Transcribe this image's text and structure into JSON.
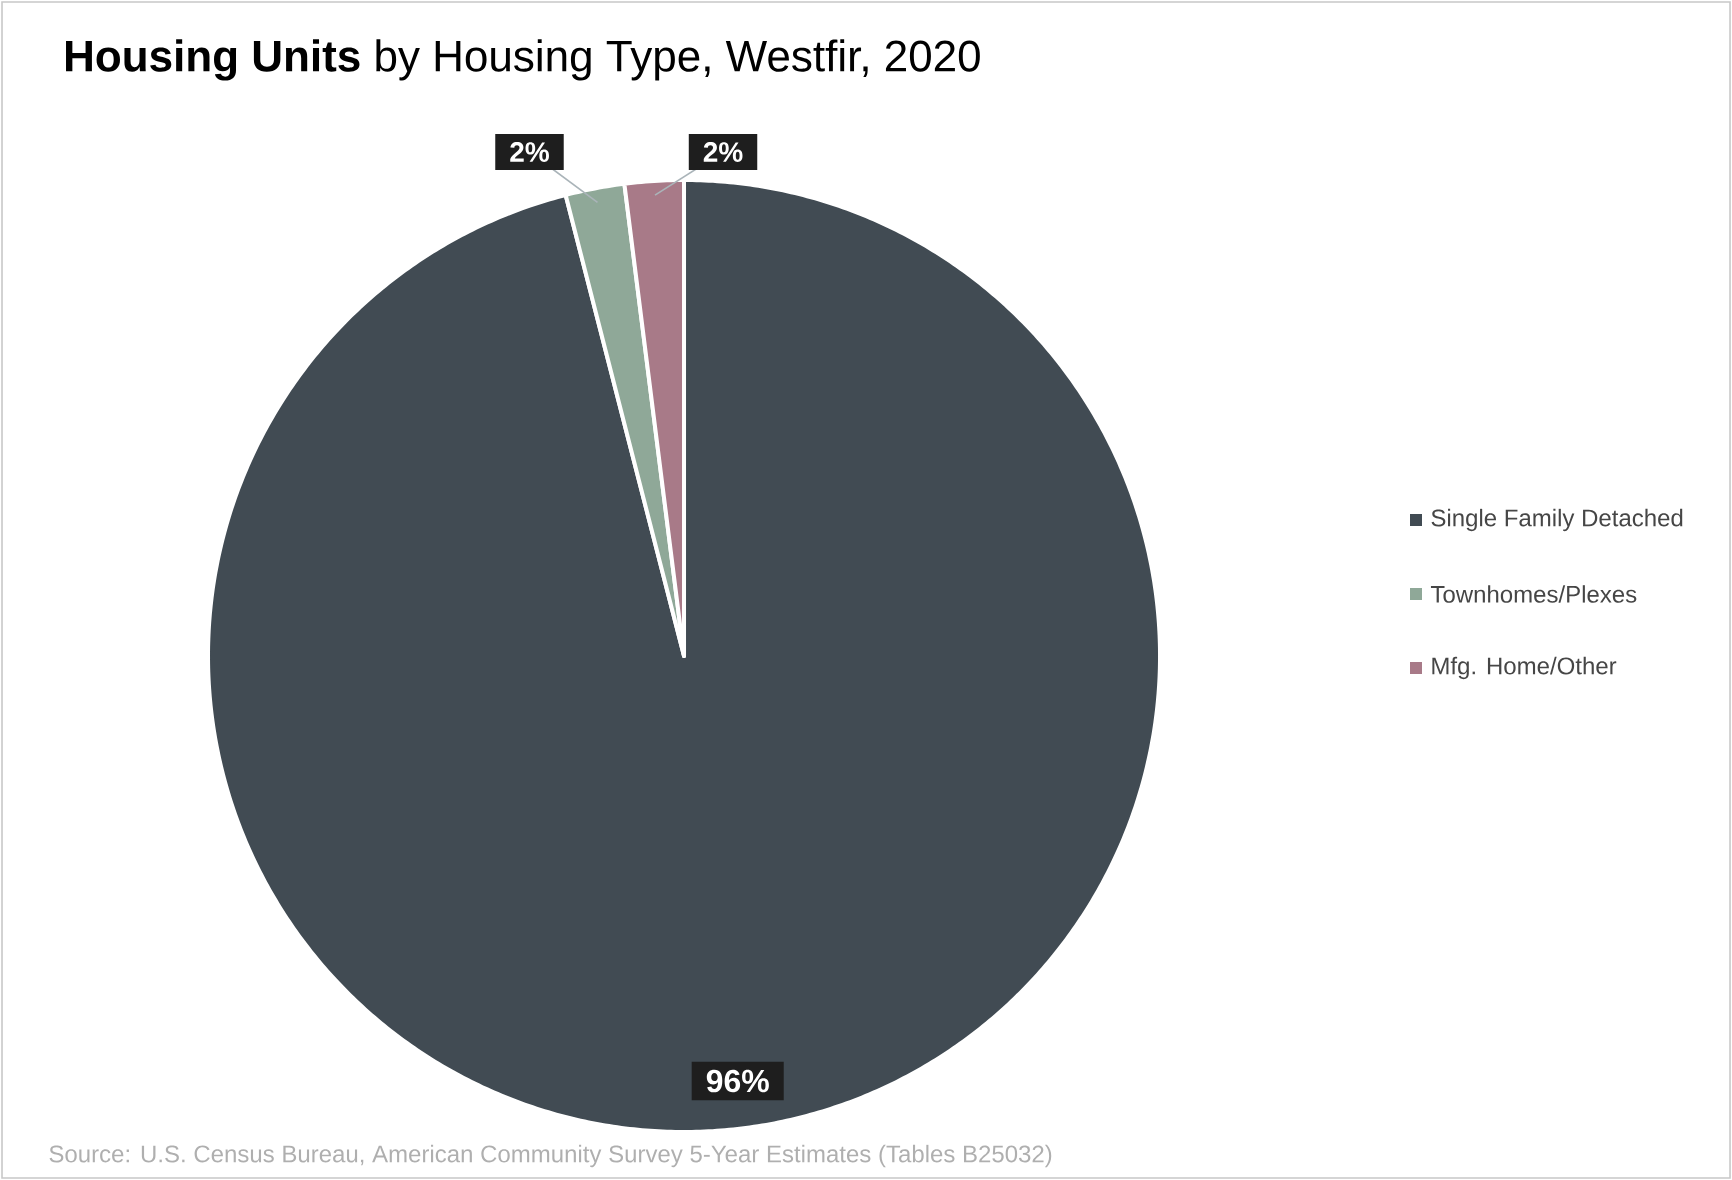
{
  "chart_data": {
    "type": "pie",
    "title": "**Housing Units** by Housing Type, Westfir, 2020",
    "categories": [
      "Single Family Detached",
      "Townhomes/Plexes",
      "Mfg. Home/Other"
    ],
    "values": [
      96,
      2,
      2
    ],
    "colors": [
      "#414b53",
      "#8fa898",
      "#a87a88"
    ],
    "value_labels": [
      "96%",
      "2%",
      "2%"
    ],
    "legend": "right",
    "annotations": [
      "Source: U.S. Census Bureau, American Community Survey 5-Year Estimates (Tables B25032)"
    ]
  }
}
